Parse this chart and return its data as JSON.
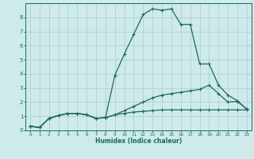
{
  "xlabel": "Humidex (Indice chaleur)",
  "bg_color": "#ceeaea",
  "grid_color": "#aacccc",
  "line_color": "#1a6b5a",
  "xlim": [
    -0.5,
    23.5
  ],
  "ylim": [
    0,
    9
  ],
  "xticks": [
    0,
    1,
    2,
    3,
    4,
    5,
    6,
    7,
    8,
    9,
    10,
    11,
    12,
    13,
    14,
    15,
    16,
    17,
    18,
    19,
    20,
    21,
    22,
    23
  ],
  "yticks": [
    0,
    1,
    2,
    3,
    4,
    5,
    6,
    7,
    8
  ],
  "curve1_x": [
    0,
    1,
    2,
    3,
    4,
    5,
    6,
    7,
    8,
    9,
    10,
    11,
    12,
    13,
    14,
    15,
    16,
    17,
    18,
    19,
    20,
    21,
    22,
    23
  ],
  "curve1_y": [
    0.3,
    0.2,
    0.85,
    1.05,
    1.2,
    1.2,
    1.1,
    0.85,
    0.9,
    1.1,
    1.2,
    1.3,
    1.35,
    1.4,
    1.45,
    1.45,
    1.45,
    1.45,
    1.45,
    1.45,
    1.45,
    1.45,
    1.45,
    1.45
  ],
  "curve2_x": [
    0,
    1,
    2,
    3,
    4,
    5,
    6,
    7,
    8,
    9,
    10,
    11,
    12,
    13,
    14,
    15,
    16,
    17,
    18,
    19,
    20,
    21,
    22,
    23
  ],
  "curve2_y": [
    0.3,
    0.2,
    0.85,
    1.05,
    1.2,
    1.2,
    1.1,
    0.85,
    0.9,
    1.1,
    1.4,
    1.7,
    2.0,
    2.3,
    2.5,
    2.6,
    2.7,
    2.8,
    2.9,
    3.2,
    2.6,
    2.0,
    2.05,
    1.5
  ],
  "curve3_x": [
    0,
    1,
    2,
    3,
    4,
    5,
    6,
    7,
    8,
    9,
    10,
    11,
    12,
    13,
    14,
    15,
    16,
    17,
    18,
    19,
    20,
    21,
    22,
    23
  ],
  "curve3_y": [
    0.3,
    0.2,
    0.85,
    1.05,
    1.2,
    1.2,
    1.1,
    0.85,
    0.9,
    3.9,
    5.4,
    6.8,
    8.2,
    8.6,
    8.5,
    8.6,
    7.5,
    7.5,
    4.7,
    4.7,
    3.2,
    2.5,
    2.1,
    1.5
  ],
  "marker": "+",
  "markersize": 3,
  "linewidth": 0.9
}
